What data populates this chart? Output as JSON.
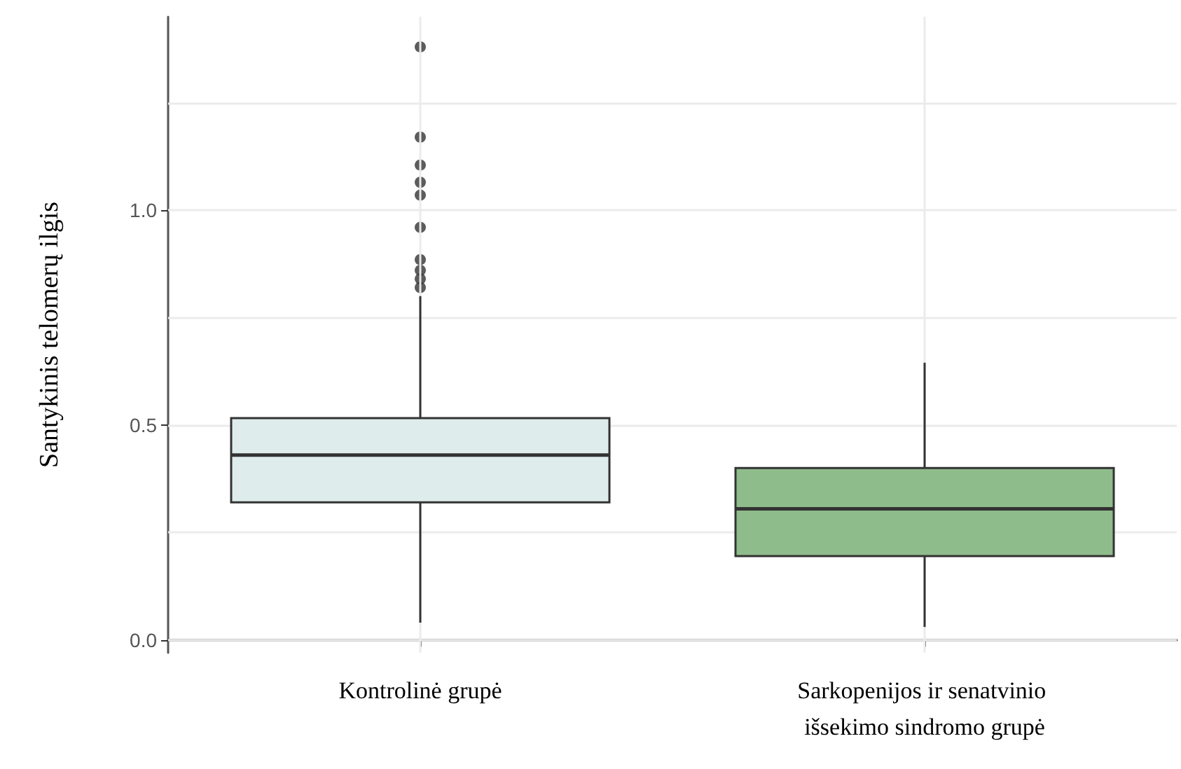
{
  "chart_data": {
    "type": "box",
    "ylabel": "Santykinis telomerų ilgis",
    "categories": [
      "Kontrolinė grupė",
      "Sarkopenijos ir senatvinio išsekimo sindromo grupė"
    ],
    "colors": [
      "#dfecec",
      "#8fbc8b"
    ],
    "boxes": [
      {
        "low": 0.04,
        "q1": 0.32,
        "median": 0.43,
        "q3": 0.516,
        "high": 0.8,
        "outliers": [
          1.38,
          1.17,
          1.105,
          1.065,
          1.035,
          0.96,
          0.885,
          0.86,
          0.84,
          0.82
        ]
      },
      {
        "low": 0.03,
        "q1": 0.195,
        "median": 0.305,
        "q3": 0.4,
        "high": 0.645
      }
    ],
    "ylim": [
      -0.03,
      1.45
    ],
    "yticks": [
      {
        "value": 0,
        "label": "0.0"
      },
      {
        "value": 0.25,
        "label": null
      },
      0.5,
      {
        "value": 0.75,
        "label": null
      },
      {
        "value": 1,
        "label": "1.0"
      },
      {
        "value": 1.25,
        "label": null
      }
    ],
    "grid": true
  }
}
